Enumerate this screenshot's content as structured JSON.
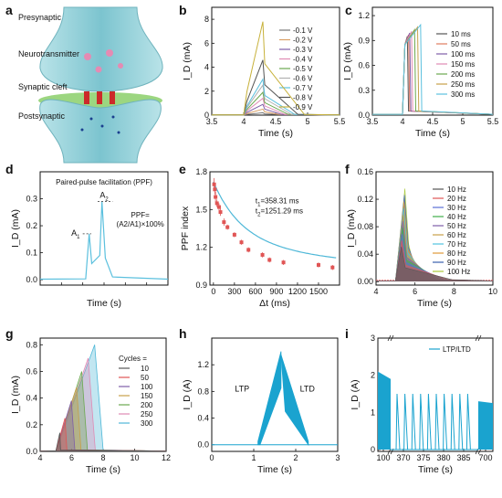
{
  "panels": {
    "a": {
      "letter": "a",
      "labels": [
        "Presynaptic",
        "Neurotransmitter",
        "Synaptic cleft",
        "Postsynaptic"
      ],
      "colors": {
        "membrane": "#9ed3d9",
        "cleft": "#6fbf5d",
        "ion": "#cc2a2a",
        "vesicle": "#e58bb3"
      }
    },
    "b": {
      "letter": "b",
      "chart_data": {
        "type": "line",
        "xlabel": "Time (s)",
        "ylabel": "I_D (mA)",
        "xlim": [
          3.5,
          5.5
        ],
        "ylim": [
          0,
          9
        ],
        "xticks": [
          3.5,
          4.0,
          4.5,
          5.0,
          5.5
        ],
        "yticks": [
          0,
          2,
          4,
          6,
          8
        ],
        "legend": "top-right",
        "series": [
          {
            "name": "-0.1 V",
            "color": "#777777",
            "peak": 0.2,
            "tpeak": 4.3,
            "tend": 4.5
          },
          {
            "name": "-0.2 V",
            "color": "#d9a066",
            "peak": 0.5,
            "tpeak": 4.3,
            "tend": 4.55
          },
          {
            "name": "-0.3 V",
            "color": "#7e5ea8",
            "peak": 0.9,
            "tpeak": 4.3,
            "tend": 4.6
          },
          {
            "name": "-0.4 V",
            "color": "#e08ab4",
            "peak": 1.4,
            "tpeak": 4.3,
            "tend": 4.65
          },
          {
            "name": "-0.5 V",
            "color": "#6aa84f",
            "peak": 1.9,
            "tpeak": 4.3,
            "tend": 4.7
          },
          {
            "name": "-0.6 V",
            "color": "#b0b0b0",
            "peak": 2.5,
            "tpeak": 4.3,
            "tend": 4.75
          },
          {
            "name": "-0.7 V",
            "color": "#5bc0de",
            "peak": 3.0,
            "tpeak": 4.3,
            "tend": 4.8
          },
          {
            "name": "-0.8 V",
            "color": "#555555",
            "peak": 4.6,
            "tpeak": 4.3,
            "tend": 4.85
          },
          {
            "name": "-0.9 V",
            "color": "#c7b13a",
            "peak": 7.8,
            "tpeak": 4.3,
            "tend": 4.95
          }
        ]
      }
    },
    "c": {
      "letter": "c",
      "chart_data": {
        "type": "line",
        "xlabel": "Time (s)",
        "ylabel": "I_D (mA)",
        "xlim": [
          3.5,
          5.5
        ],
        "ylim": [
          0,
          1.3
        ],
        "xticks": [
          3.5,
          4.0,
          4.5,
          5.0,
          5.5
        ],
        "yticks": [
          0,
          0.3,
          0.6,
          0.9,
          1.2
        ],
        "ytick_labels": [
          "0.0",
          "0.3",
          "0.6",
          "0.9",
          "1.2"
        ],
        "legend": "right",
        "series": [
          {
            "name": "10 ms",
            "color": "#555555",
            "tpeak": 4.08,
            "peak": 0.95
          },
          {
            "name": "50 ms",
            "color": "#e07a5f",
            "tpeak": 4.1,
            "peak": 0.97
          },
          {
            "name": "100 ms",
            "color": "#7e5ea8",
            "tpeak": 4.12,
            "peak": 0.99
          },
          {
            "name": "150 ms",
            "color": "#e08ab4",
            "tpeak": 4.15,
            "peak": 1.01
          },
          {
            "name": "200 ms",
            "color": "#6aa84f",
            "tpeak": 4.2,
            "peak": 1.03
          },
          {
            "name": "250 ms",
            "color": "#c7a04a",
            "tpeak": 4.25,
            "peak": 1.06
          },
          {
            "name": "300 ms",
            "color": "#5bc0de",
            "tpeak": 4.3,
            "peak": 1.09
          }
        ],
        "onset": 4.0
      }
    },
    "d": {
      "letter": "d",
      "chart_data": {
        "type": "line",
        "title": "Paired-pulse facilitation (PPF)",
        "xlabel": "Time (s)",
        "ylabel": "I_D (mA)",
        "xlim": [
          0,
          3
        ],
        "ylim": [
          -0.02,
          0.4
        ],
        "yticks": [
          0.0,
          0.1,
          0.2,
          0.3
        ],
        "ytick_labels": [
          "0.0",
          "0.1",
          "0.2",
          "0.3"
        ],
        "series": [
          {
            "name": "",
            "color": "#5bc0de"
          }
        ],
        "pulses": [
          {
            "t": 1.15,
            "peak": 0.17,
            "label": "A1"
          },
          {
            "t": 1.45,
            "peak": 0.29,
            "label": "A2"
          }
        ],
        "annotations": {
          "A1": "A",
          "A1_sub": "1",
          "A2": "A",
          "A2_sub": "2",
          "ppf_line1": "PPF=",
          "ppf_line2": "(A2/A1)×100%"
        }
      }
    },
    "e": {
      "letter": "e",
      "chart_data": {
        "type": "scatter",
        "xlabel": "Δt (ms)",
        "ylabel": "PPF index",
        "xlim": [
          -50,
          1800
        ],
        "ylim": [
          0.9,
          1.8
        ],
        "xticks": [
          0,
          300,
          600,
          900,
          1200,
          1500
        ],
        "yticks": [
          0.9,
          1.2,
          1.5,
          1.8
        ],
        "ytick_labels": [
          "0.9",
          "1.2",
          "1.5",
          "1.8"
        ],
        "x": [
          10,
          20,
          30,
          50,
          80,
          100,
          150,
          200,
          300,
          400,
          500,
          700,
          800,
          1000,
          1500,
          1700
        ],
        "y": [
          1.7,
          1.66,
          1.6,
          1.55,
          1.52,
          1.48,
          1.4,
          1.36,
          1.3,
          1.24,
          1.18,
          1.14,
          1.1,
          1.08,
          1.06,
          1.04
        ],
        "err": [
          0.05,
          0.04,
          0.04,
          0.03,
          0.03,
          0.03,
          0.03,
          0.02,
          0.02,
          0.02,
          0.02,
          0.02,
          0.02,
          0.02,
          0.02,
          0.02
        ],
        "fit": {
          "c": 1.04,
          "a1": 0.38,
          "tau1": 358.31,
          "a2": 0.3,
          "tau2": 1251.29
        },
        "annotations": {
          "t1": "t",
          "t1_sub": "1",
          "t1_val": "=358.31 ms",
          "t2": "t",
          "t2_sub": "2",
          "t2_val": "=1251.29 ms"
        },
        "marker_color": "#e05555",
        "fit_color": "#4fb8d8"
      }
    },
    "f": {
      "letter": "f",
      "chart_data": {
        "type": "line",
        "xlabel": "Time (s)",
        "ylabel": "I_D (mA)",
        "xlim": [
          4,
          10
        ],
        "ylim": [
          -0.005,
          0.16
        ],
        "xticks": [
          4,
          6,
          8,
          10
        ],
        "yticks": [
          0.0,
          0.04,
          0.08,
          0.12,
          0.16
        ],
        "ytick_labels": [
          "0.00",
          "0.04",
          "0.08",
          "0.12",
          "0.16"
        ],
        "legend": "right",
        "series": [
          {
            "name": "10 Hz",
            "color": "#555555"
          },
          {
            "name": "20 Hz",
            "color": "#e05555"
          },
          {
            "name": "30 Hz",
            "color": "#5b6fd6"
          },
          {
            "name": "40 Hz",
            "color": "#3fae49"
          },
          {
            "name": "50 Hz",
            "color": "#7e5ea8"
          },
          {
            "name": "60 Hz",
            "color": "#c7a04a"
          },
          {
            "name": "70 Hz",
            "color": "#4fc3e0"
          },
          {
            "name": "80 Hz",
            "color": "#e09a3a"
          },
          {
            "name": "90 Hz",
            "color": "#3a5fae"
          },
          {
            "name": "100 Hz",
            "color": "#a9c93a"
          }
        ],
        "peak": 0.145
      }
    },
    "g": {
      "letter": "g",
      "chart_data": {
        "type": "line",
        "xlabel": "Time (s)",
        "ylabel": "I_D (mA)",
        "xlim": [
          4,
          12
        ],
        "ylim": [
          0,
          0.85
        ],
        "xticks": [
          4,
          6,
          8,
          10,
          12
        ],
        "yticks": [
          0.0,
          0.2,
          0.4,
          0.6,
          0.8
        ],
        "ytick_labels": [
          "0.0",
          "0.2",
          "0.4",
          "0.6",
          "0.8"
        ],
        "legend_title": "Cycles =",
        "series": [
          {
            "name": "10",
            "color": "#555555",
            "tend": 5.3,
            "peak": 0.14
          },
          {
            "name": "50",
            "color": "#e05555",
            "tend": 5.7,
            "peak": 0.25
          },
          {
            "name": "100",
            "color": "#7e5ea8",
            "tend": 6.2,
            "peak": 0.38
          },
          {
            "name": "150",
            "color": "#c7a04a",
            "tend": 6.6,
            "peak": 0.48
          },
          {
            "name": "200",
            "color": "#6aa84f",
            "tend": 7.0,
            "peak": 0.6
          },
          {
            "name": "250",
            "color": "#e08ab4",
            "tend": 7.5,
            "peak": 0.7
          },
          {
            "name": "300",
            "color": "#4fb8d8",
            "tend": 8.0,
            "peak": 0.8
          }
        ],
        "onset": 5.0
      }
    },
    "h": {
      "letter": "h",
      "chart_data": {
        "type": "area",
        "xlabel": "Time (s)",
        "ylabel": "I_D (A)",
        "xlim": [
          0,
          3
        ],
        "ylim": [
          -0.1,
          1.6
        ],
        "xticks": [
          0,
          1,
          2,
          3
        ],
        "yticks": [
          0.0,
          0.4,
          0.8,
          1.2
        ],
        "ytick_labels": [
          "0.0",
          "0.4",
          "0.8",
          "1.2"
        ],
        "labels": {
          "ltp": "LTP",
          "ltd": "LTD"
        },
        "ltp": {
          "t0": 1.1,
          "t1": 1.65,
          "peak": 1.4
        },
        "ltd": {
          "t0": 1.65,
          "t1": 2.3
        },
        "color": "#1aa3cf"
      }
    },
    "i": {
      "letter": "i",
      "chart_data": {
        "type": "area",
        "xlabel": "Time (s)",
        "ylabel": "I_D (A)",
        "ylim": [
          -0.05,
          3
        ],
        "yticks": [
          0,
          1,
          2,
          3
        ],
        "ytick_labels": [
          "0",
          "1",
          "2",
          "3"
        ],
        "xtick_labels": [
          "100",
          "370",
          "375",
          "380",
          "385",
          "700"
        ],
        "legend": "top-right",
        "series": [
          {
            "name": "LTP/LTD",
            "color": "#1aa3cf"
          }
        ],
        "spike_count": 10,
        "spike_peak": 1.5,
        "left_block_peak": 2.1,
        "right_block_peak": 1.3
      }
    }
  }
}
